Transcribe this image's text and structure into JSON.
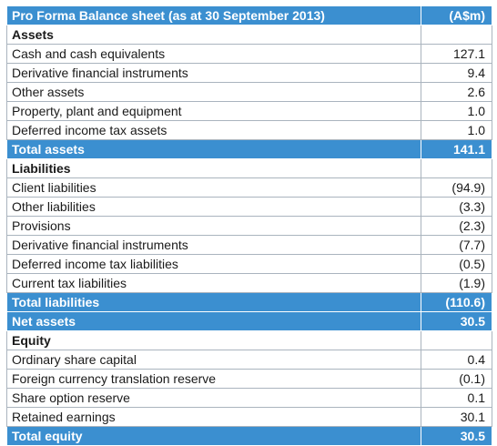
{
  "header": {
    "title": "Pro Forma Balance sheet (as at 30 September 2013)",
    "unit": "(A$m)"
  },
  "assets": {
    "heading": "Assets",
    "rows": [
      {
        "label": "Cash and cash equivalents",
        "value": "127.1"
      },
      {
        "label": "Derivative financial instruments",
        "value": "9.4"
      },
      {
        "label": "Other assets",
        "value": "2.6"
      },
      {
        "label": "Property, plant and equipment",
        "value": "1.0"
      },
      {
        "label": "Deferred income tax assets",
        "value": "1.0"
      }
    ],
    "total": {
      "label": "Total assets",
      "value": "141.1"
    }
  },
  "liabilities": {
    "heading": "Liabilities",
    "rows": [
      {
        "label": "Client liabilities",
        "value": "(94.9)"
      },
      {
        "label": "Other liabilities",
        "value": "(3.3)"
      },
      {
        "label": "Provisions",
        "value": "(2.3)"
      },
      {
        "label": "Derivative financial instruments",
        "value": "(7.7)"
      },
      {
        "label": "Deferred income tax liabilities",
        "value": "(0.5)"
      },
      {
        "label": "Current tax liabilities",
        "value": "(1.9)"
      }
    ],
    "total": {
      "label": "Total liabilities",
      "value": "(110.6)"
    }
  },
  "net_assets": {
    "label": "Net assets",
    "value": "30.5"
  },
  "equity": {
    "heading": "Equity",
    "rows": [
      {
        "label": "Ordinary share capital",
        "value": "0.4"
      },
      {
        "label": "Foreign currency translation reserve",
        "value": "(0.1)"
      },
      {
        "label": "Share option reserve",
        "value": "0.1"
      },
      {
        "label": "Retained earnings",
        "value": "30.1"
      }
    ],
    "total": {
      "label": "Total equity",
      "value": "30.5"
    }
  },
  "colors": {
    "header_fill": "#3b8fd0",
    "header_text": "#ffffff",
    "grid": "#aab4be"
  }
}
